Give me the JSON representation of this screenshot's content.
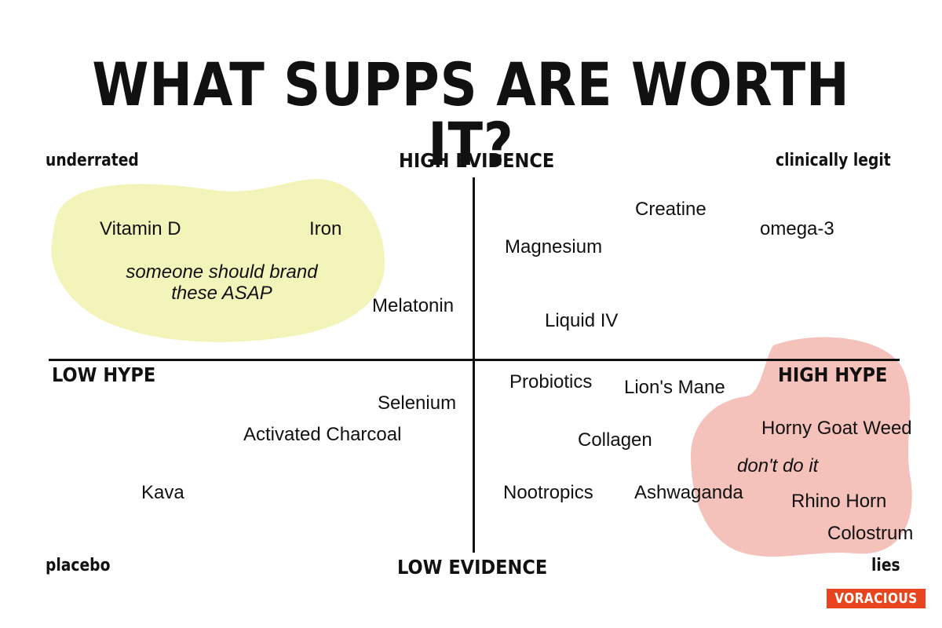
{
  "title": "WHAT SUPPS ARE WORTH IT?",
  "axes": {
    "top": "HIGH EVIDENCE",
    "bottom": "LOW EVIDENCE",
    "left": "LOW HYPE",
    "right": "HIGH HYPE"
  },
  "corners": {
    "top_left": "underrated",
    "top_right": "clinically legit",
    "bottom_left": "placebo",
    "bottom_right": "lies"
  },
  "items": {
    "vitamin_d": "Vitamin D",
    "iron": "Iron",
    "melatonin": "Melatonin",
    "creatine": "Creatine",
    "omega3": "omega-3",
    "magnesium": "Magnesium",
    "liquid_iv": "Liquid IV",
    "probiotics": "Probiotics",
    "lions_mane": "Lion's Mane",
    "selenium": "Selenium",
    "activated_charcoal": "Activated Charcoal",
    "collagen": "Collagen",
    "kava": "Kava",
    "nootropics": "Nootropics",
    "ashwaganda": "Ashwaganda",
    "horny_goat_weed": "Horny Goat Weed",
    "rhino_horn": "Rhino Horn",
    "colostrum": "Colostrum"
  },
  "notes": {
    "yellow_line1": "someone should brand",
    "yellow_line2": "these ASAP",
    "pink": "don't do it"
  },
  "logo": "VORACIOUS",
  "colors": {
    "yellow_blob": "#f3f4b9",
    "pink_blob": "#f4c1bb",
    "logo_bg": "#e8451f",
    "axis": "#111111"
  }
}
